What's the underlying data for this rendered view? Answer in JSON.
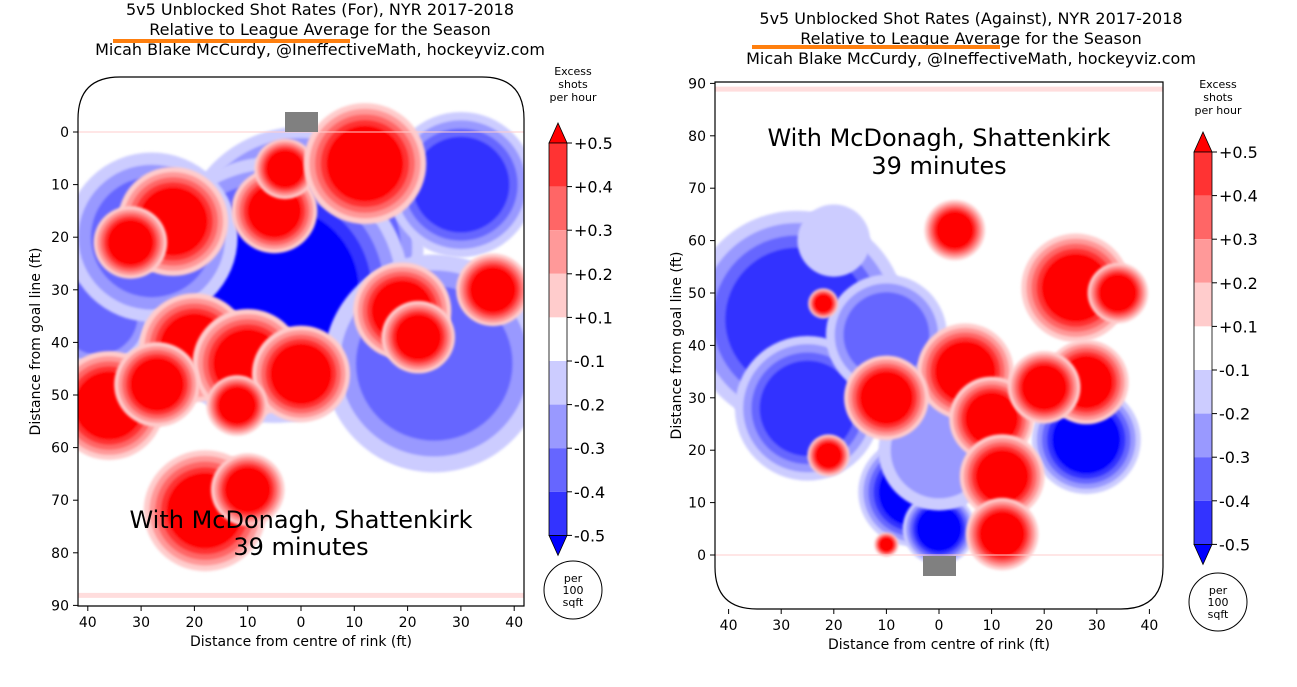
{
  "colors": {
    "accent_underline": "#ff7f0e",
    "levels": {
      "+0.5": "#ff0000",
      "+0.4": "#ff3333",
      "+0.3": "#ff6666",
      "+0.2": "#ff9999",
      "+0.1": "#ffcccc",
      "0": "#ffffff",
      "-0.1": "#ccccff",
      "-0.2": "#9999ff",
      "-0.3": "#6666ff",
      "-0.4": "#3333ff",
      "-0.5": "#0000ff"
    },
    "goal": "#808080"
  },
  "colorbar": {
    "title_lines": [
      "Excess",
      "shots",
      "per hour"
    ],
    "levels": [
      "+0.5",
      "+0.4",
      "+0.3",
      "+0.2",
      "+0.1",
      "-0.1",
      "-0.2",
      "-0.3",
      "-0.4",
      "-0.5"
    ],
    "circle_lines": [
      "per",
      "100",
      "sqft"
    ]
  },
  "chart_data": [
    {
      "type": "heatmap",
      "title_lines": [
        "5v5 Unblocked Shot Rates (For), NYR 2017-2018",
        "Relative to League Average for the Season",
        "Micah Blake McCurdy, @IneffectiveMath, hockeyviz.com"
      ],
      "xlabel": "Distance from centre of rink (ft)",
      "ylabel": "Distance from goal line (ft)",
      "xticks": [
        "40",
        "30",
        "20",
        "10",
        "0",
        "10",
        "20",
        "30",
        "40"
      ],
      "yticks": [
        "0",
        "10",
        "20",
        "30",
        "40",
        "50",
        "60",
        "70",
        "80",
        "90"
      ],
      "xlim": [
        -42,
        42
      ],
      "ylim": [
        90,
        -3
      ],
      "y_axis_inverted": true,
      "annotation_lines": [
        "With McDonagh, Shattenkirk",
        "39 minutes"
      ],
      "blobs": [
        {
          "x": 0,
          "y": 22,
          "r": 20,
          "value": -0.5
        },
        {
          "x": -5,
          "y": 30,
          "r": 22,
          "value": -0.5
        },
        {
          "x": 30,
          "y": 10,
          "r": 12,
          "value": -0.4
        },
        {
          "x": 23,
          "y": 49,
          "r": 13,
          "value": -0.5
        },
        {
          "x": 25,
          "y": 44,
          "r": 18,
          "value": -0.3
        },
        {
          "x": -38,
          "y": 35,
          "r": 9,
          "value": -0.3
        },
        {
          "x": -28,
          "y": 20,
          "r": 14,
          "value": -0.3
        },
        {
          "x": -24,
          "y": 17,
          "r": 9,
          "value": 0.5
        },
        {
          "x": -32,
          "y": 21,
          "r": 6,
          "value": 0.5
        },
        {
          "x": -5,
          "y": 15,
          "r": 7,
          "value": 0.5
        },
        {
          "x": -3,
          "y": 7,
          "r": 5,
          "value": 0.5
        },
        {
          "x": 12,
          "y": 6,
          "r": 10,
          "value": 0.5
        },
        {
          "x": 19,
          "y": 34,
          "r": 8,
          "value": 0.5
        },
        {
          "x": 22,
          "y": 39,
          "r": 6,
          "value": 0.5
        },
        {
          "x": 36,
          "y": 30,
          "r": 6,
          "value": 0.5
        },
        {
          "x": -20,
          "y": 41,
          "r": 9,
          "value": 0.5
        },
        {
          "x": -10,
          "y": 44,
          "r": 9,
          "value": 0.5
        },
        {
          "x": 0,
          "y": 46,
          "r": 8,
          "value": 0.5
        },
        {
          "x": -36,
          "y": 52,
          "r": 9,
          "value": 0.5
        },
        {
          "x": -27,
          "y": 48,
          "r": 7,
          "value": 0.5
        },
        {
          "x": -12,
          "y": 52,
          "r": 5,
          "value": 0.5
        },
        {
          "x": -18,
          "y": 72,
          "r": 10,
          "value": 0.5
        },
        {
          "x": -10,
          "y": 68,
          "r": 6,
          "value": 0.5
        }
      ]
    },
    {
      "type": "heatmap",
      "title_lines": [
        "5v5 Unblocked Shot Rates (Against), NYR 2017-2018",
        "Relative to League Average for the Season",
        "Micah Blake McCurdy, @IneffectiveMath, hockeyviz.com"
      ],
      "xlabel": "Distance from centre of rink (ft)",
      "ylabel": "Distance from goal line (ft)",
      "xticks": [
        "40",
        "30",
        "20",
        "10",
        "0",
        "10",
        "20",
        "30",
        "40"
      ],
      "yticks": [
        "0",
        "10",
        "20",
        "30",
        "40",
        "50",
        "60",
        "70",
        "80",
        "90"
      ],
      "xlim": [
        -42,
        42
      ],
      "ylim": [
        -3,
        90
      ],
      "y_axis_inverted": false,
      "annotation_lines": [
        "With McDonagh, Shattenkirk",
        "39 minutes"
      ],
      "blobs": [
        {
          "x": -27,
          "y": 45,
          "r": 18,
          "value": -0.4
        },
        {
          "x": -25,
          "y": 28,
          "r": 12,
          "value": -0.4
        },
        {
          "x": -10,
          "y": 42,
          "r": 10,
          "value": -0.3
        },
        {
          "x": 28,
          "y": 22,
          "r": 9,
          "value": -0.5
        },
        {
          "x": -5,
          "y": 12,
          "r": 9,
          "value": -0.5
        },
        {
          "x": 0,
          "y": 5,
          "r": 6,
          "value": -0.5
        },
        {
          "x": 3,
          "y": 62,
          "r": 5,
          "value": 0.5
        },
        {
          "x": -22,
          "y": 48,
          "r": 2.5,
          "value": 0.5
        },
        {
          "x": 26,
          "y": 51,
          "r": 9,
          "value": 0.5
        },
        {
          "x": 34,
          "y": 50,
          "r": 5,
          "value": 0.5
        },
        {
          "x": 5,
          "y": 35,
          "r": 8,
          "value": 0.5
        },
        {
          "x": -10,
          "y": 30,
          "r": 7,
          "value": 0.5
        },
        {
          "x": 10,
          "y": 26,
          "r": 7,
          "value": 0.5
        },
        {
          "x": 12,
          "y": 15,
          "r": 7,
          "value": 0.5
        },
        {
          "x": 12,
          "y": 4,
          "r": 6,
          "value": 0.5
        },
        {
          "x": 28,
          "y": 33,
          "r": 7,
          "value": 0.5
        },
        {
          "x": 20,
          "y": 32,
          "r": 6,
          "value": 0.5
        },
        {
          "x": -21,
          "y": 19,
          "r": 3.5,
          "value": 0.5
        },
        {
          "x": -10,
          "y": 2,
          "r": 2,
          "value": 0.5
        },
        {
          "x": -20,
          "y": 60,
          "r": 6,
          "value": -0.1
        },
        {
          "x": 0,
          "y": 20,
          "r": 10,
          "value": -0.2
        }
      ]
    }
  ]
}
